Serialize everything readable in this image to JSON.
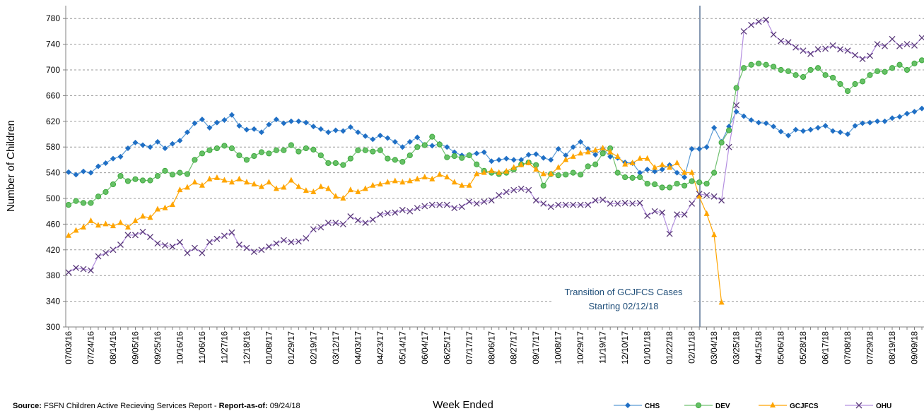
{
  "chart_data": {
    "type": "line",
    "y_label": "Number of Children",
    "x_label": "Week Ended",
    "annotation": [
      "Transition of GCJFCS Cases",
      "Starting 02/12/18"
    ],
    "source_label": "Source:",
    "source_text": "FSFN Children Active Recieving Services Report -",
    "report_label": "Report-as-of:",
    "report_date": "09/24/18",
    "legend": "bottom-right",
    "grid": true,
    "ylim": [
      300,
      800
    ],
    "yticks": [
      300,
      340,
      380,
      420,
      460,
      500,
      540,
      580,
      620,
      660,
      700,
      740,
      780
    ],
    "categories": [
      "07/03/16",
      null,
      null,
      "07/24/16",
      null,
      null,
      "08/14/16",
      null,
      null,
      "09/05/16",
      null,
      null,
      "09/25/16",
      null,
      null,
      "10/16/16",
      null,
      null,
      "11/06/16",
      null,
      null,
      "11/27/16",
      null,
      null,
      "12/18/16",
      null,
      null,
      "01/08/17",
      null,
      null,
      "01/29/17",
      null,
      null,
      "02/19/17",
      null,
      null,
      "03/12/17",
      null,
      null,
      "04/03/17",
      null,
      null,
      "04/23/17",
      null,
      null,
      "05/14/17",
      null,
      null,
      "06/04/17",
      null,
      null,
      "06/25/17",
      null,
      null,
      "07/17/17",
      null,
      null,
      "08/06/17",
      null,
      null,
      "08/27/17",
      null,
      null,
      "09/17/17",
      null,
      null,
      "10/08/17",
      null,
      null,
      "10/29/17",
      null,
      null,
      "11/19/17",
      null,
      null,
      "12/10/17",
      null,
      null,
      "01/01/18",
      null,
      null,
      "01/22/18",
      null,
      null,
      "02/11/18",
      null,
      null,
      "03/04/18",
      null,
      null,
      "03/25/18",
      null,
      null,
      "04/15/18",
      null,
      null,
      "05/06/18",
      null,
      null,
      "05/28/18",
      null,
      null,
      "06/17/18",
      null,
      null,
      "07/08/18",
      null,
      null,
      "07/29/18",
      null,
      null,
      "08/19/18",
      null,
      null,
      "09/09/18",
      null
    ],
    "series": [
      {
        "name": "CHS",
        "color": "#1f6fc5",
        "line_color": "#5b9bd5",
        "marker": "diamond",
        "values": [
          541,
          537,
          542,
          540,
          550,
          555,
          562,
          565,
          578,
          587,
          583,
          580,
          588,
          578,
          585,
          590,
          603,
          617,
          623,
          610,
          618,
          622,
          630,
          613,
          607,
          608,
          603,
          615,
          623,
          617,
          620,
          620,
          618,
          612,
          608,
          603,
          606,
          605,
          611,
          603,
          597,
          592,
          598,
          594,
          588,
          580,
          588,
          595,
          583,
          582,
          585,
          580,
          572,
          567,
          568,
          570,
          572,
          558,
          560,
          562,
          560,
          560,
          568,
          569,
          563,
          560,
          577,
          567,
          580,
          588,
          577,
          568,
          577,
          565,
          563,
          556,
          555,
          540,
          545,
          542,
          545,
          552,
          540,
          533,
          577,
          577,
          580,
          610,
          588,
          612,
          635,
          628,
          622,
          618,
          617,
          612,
          604,
          598,
          607,
          605,
          607,
          610,
          613,
          605,
          603,
          600,
          613,
          617,
          618,
          620,
          620,
          625,
          627,
          632,
          635,
          640
        ]
      },
      {
        "name": "DEV",
        "color": "#3faa3f",
        "line_color": "#70c070",
        "marker": "circle",
        "values": [
          490,
          496,
          493,
          493,
          503,
          510,
          522,
          535,
          527,
          530,
          528,
          528,
          535,
          543,
          537,
          540,
          538,
          560,
          570,
          575,
          578,
          582,
          578,
          567,
          560,
          566,
          572,
          570,
          575,
          575,
          583,
          573,
          578,
          576,
          567,
          555,
          555,
          552,
          562,
          575,
          575,
          573,
          575,
          562,
          560,
          557,
          567,
          580,
          583,
          596,
          584,
          564,
          566,
          563,
          567,
          553,
          543,
          540,
          538,
          540,
          545,
          553,
          556,
          552,
          520,
          538,
          536,
          537,
          540,
          537,
          550,
          553,
          570,
          578,
          540,
          533,
          532,
          533,
          523,
          522,
          517,
          517,
          523,
          520,
          527,
          525,
          523,
          540,
          587,
          606,
          672,
          703,
          708,
          710,
          708,
          705,
          700,
          698,
          692,
          689,
          700,
          703,
          692,
          688,
          678,
          667,
          678,
          682,
          692,
          698,
          697,
          703,
          708,
          700,
          710,
          715
        ]
      },
      {
        "name": "GCJFCS",
        "color": "#ffa500",
        "line_color": "#ffa500",
        "marker": "triangle",
        "values": [
          442,
          450,
          455,
          465,
          458,
          460,
          457,
          462,
          455,
          465,
          472,
          470,
          483,
          485,
          490,
          513,
          517,
          525,
          520,
          530,
          532,
          528,
          525,
          530,
          525,
          522,
          518,
          525,
          515,
          517,
          528,
          518,
          512,
          510,
          518,
          515,
          503,
          500,
          513,
          510,
          515,
          520,
          522,
          525,
          527,
          525,
          527,
          530,
          533,
          530,
          537,
          533,
          525,
          520,
          520,
          538,
          540,
          543,
          540,
          542,
          548,
          552,
          555,
          545,
          538,
          538,
          548,
          560,
          565,
          570,
          572,
          575,
          578,
          572,
          565,
          553,
          555,
          562,
          562,
          548,
          552,
          548,
          555,
          540,
          540,
          503,
          476,
          443,
          338,
          null,
          null,
          null,
          null,
          null,
          null,
          null,
          null,
          null,
          null,
          null,
          null,
          null,
          null,
          null,
          null,
          null,
          null,
          null,
          null,
          null,
          null,
          null,
          null,
          null,
          null,
          null
        ]
      },
      {
        "name": "OHU",
        "color": "#5a3a7a",
        "line_color": "#b48fe0",
        "marker": "x",
        "values": [
          385,
          392,
          390,
          388,
          410,
          415,
          420,
          428,
          443,
          443,
          448,
          440,
          430,
          427,
          425,
          432,
          415,
          423,
          415,
          432,
          437,
          442,
          447,
          428,
          423,
          417,
          420,
          425,
          430,
          435,
          432,
          433,
          438,
          452,
          455,
          462,
          462,
          460,
          472,
          466,
          462,
          467,
          475,
          477,
          478,
          482,
          480,
          485,
          488,
          490,
          490,
          490,
          485,
          487,
          495,
          492,
          495,
          497,
          505,
          510,
          513,
          515,
          513,
          497,
          492,
          487,
          490,
          490,
          490,
          490,
          490,
          497,
          498,
          492,
          492,
          493,
          492,
          493,
          473,
          480,
          478,
          445,
          475,
          475,
          492,
          507,
          505,
          503,
          497,
          580,
          645,
          760,
          770,
          775,
          778,
          755,
          745,
          743,
          735,
          730,
          725,
          732,
          733,
          738,
          732,
          730,
          723,
          717,
          722,
          740,
          737,
          748,
          737,
          740,
          738,
          750
        ]
      }
    ]
  }
}
